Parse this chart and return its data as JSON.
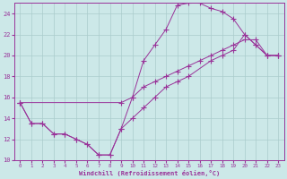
{
  "bg_color": "#cce8e8",
  "line_color": "#993399",
  "grid_color": "#aacccc",
  "xlabel": "Windchill (Refroidissement éolien,°C)",
  "xlim": [
    -0.5,
    23.5
  ],
  "ylim": [
    10,
    25
  ],
  "yticks": [
    10,
    12,
    14,
    16,
    18,
    20,
    22,
    24
  ],
  "xticks": [
    0,
    1,
    2,
    3,
    4,
    5,
    6,
    7,
    8,
    9,
    10,
    11,
    12,
    13,
    14,
    15,
    16,
    17,
    18,
    19,
    20,
    21,
    22,
    23
  ],
  "line1_x": [
    0,
    1,
    2,
    3,
    4,
    5,
    6,
    7,
    8,
    9,
    10,
    11,
    12,
    13,
    14,
    15,
    16,
    17,
    18,
    19,
    20,
    21,
    22,
    23
  ],
  "line1_y": [
    15.5,
    13.5,
    13.5,
    12.5,
    12.5,
    12.0,
    11.5,
    10.5,
    10.5,
    13.0,
    16.0,
    19.5,
    21.0,
    22.5,
    24.8,
    25.0,
    25.0,
    24.5,
    24.2,
    23.5,
    22.0,
    21.0,
    20.0,
    20.0
  ],
  "line2_x": [
    0,
    1,
    2,
    3,
    4,
    5,
    6,
    7,
    8,
    9,
    10,
    11,
    12,
    13,
    14,
    15,
    17,
    18,
    19,
    20,
    21,
    22,
    23
  ],
  "line2_y": [
    15.5,
    13.5,
    13.5,
    12.5,
    12.5,
    12.0,
    11.5,
    10.5,
    10.5,
    13.0,
    14.0,
    15.0,
    16.0,
    17.0,
    17.5,
    18.0,
    19.5,
    20.0,
    20.5,
    22.0,
    21.0,
    20.0,
    20.0
  ],
  "line3_x": [
    0,
    9,
    10,
    11,
    12,
    13,
    14,
    15,
    16,
    17,
    18,
    19,
    20,
    21,
    22,
    23
  ],
  "line3_y": [
    15.5,
    15.5,
    16.0,
    17.0,
    17.5,
    18.0,
    18.5,
    19.0,
    19.5,
    20.0,
    20.5,
    21.0,
    21.5,
    21.5,
    20.0,
    20.0
  ],
  "markersize": 3
}
